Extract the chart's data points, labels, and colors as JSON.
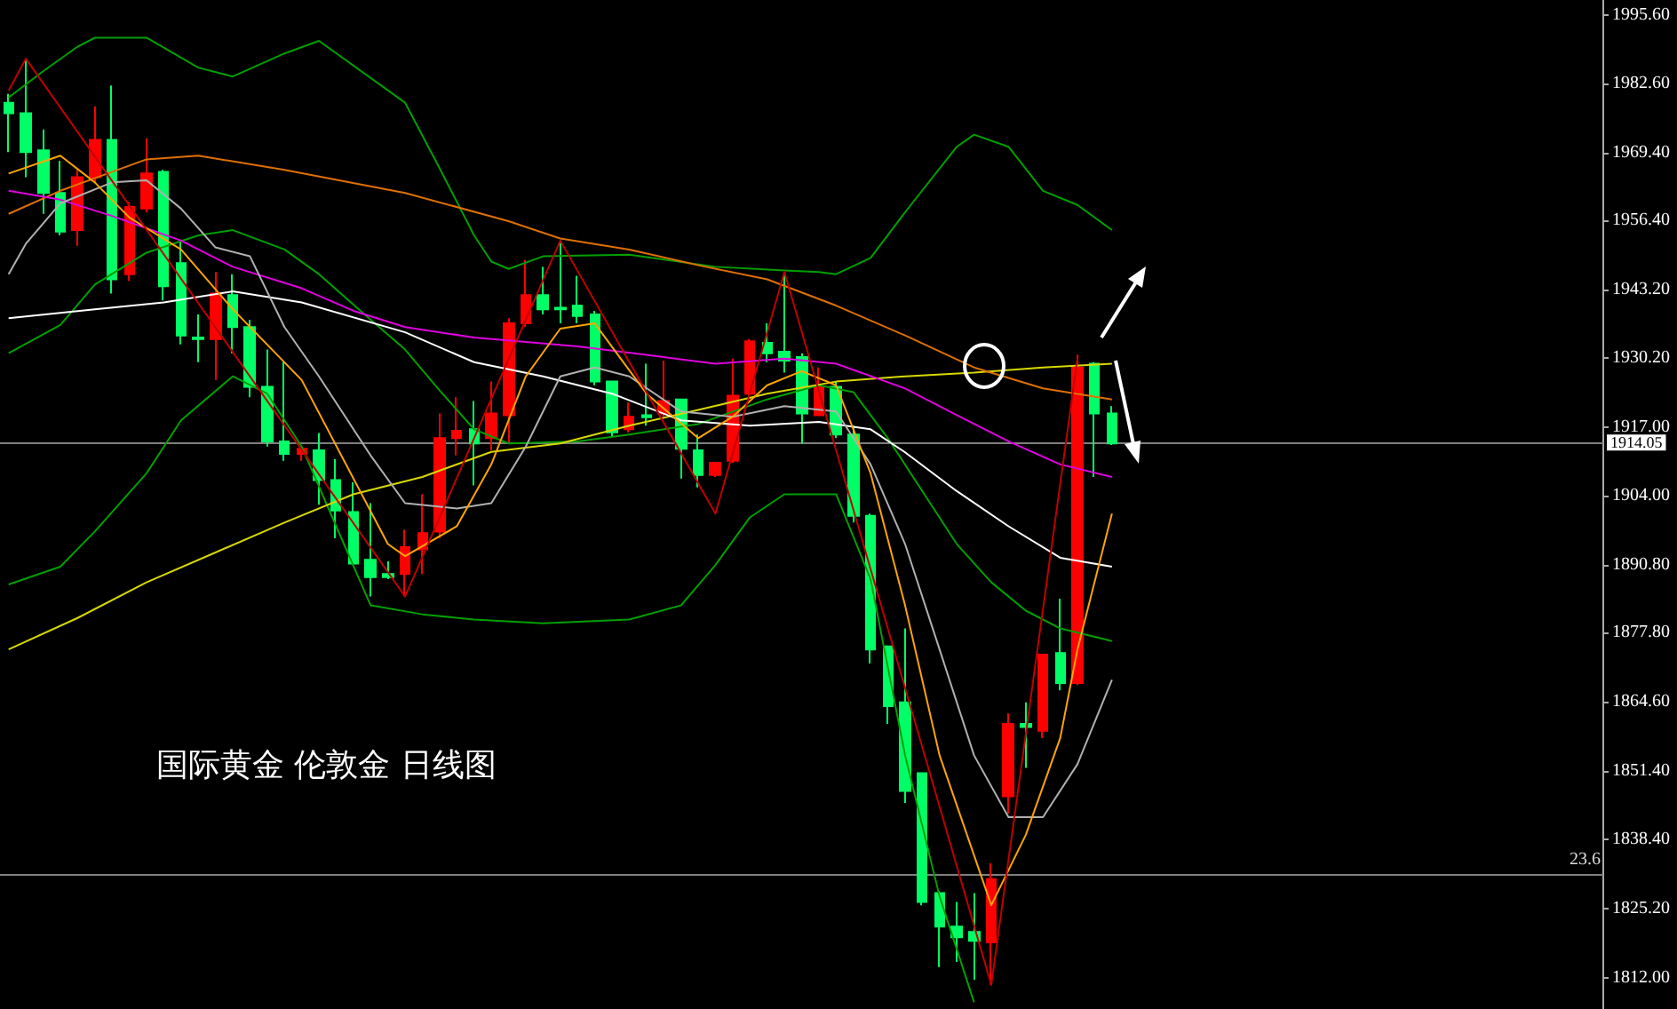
{
  "chart_data": {
    "type": "candlestick",
    "categories": [
      null,
      null,
      null,
      null,
      null,
      null,
      null,
      null,
      null,
      null,
      null,
      null,
      null,
      null,
      null,
      null,
      null,
      null,
      null,
      null,
      null,
      null,
      null,
      null,
      null,
      null,
      null,
      null,
      null,
      null,
      null,
      null,
      null,
      null,
      null,
      null,
      null,
      null,
      null,
      null,
      null,
      null,
      null,
      null,
      null,
      null,
      null,
      null,
      null,
      null,
      null,
      null,
      null,
      null,
      null,
      null,
      null,
      null,
      null,
      null,
      null,
      null,
      null,
      null,
      null,
      null,
      null,
      null,
      null,
      null,
      null,
      null,
      null,
      null,
      null,
      null,
      null,
      null,
      null,
      null,
      null,
      null,
      null,
      null,
      null,
      null,
      null,
      null,
      null,
      null,
      null,
      null,
      null
    ],
    "ohlc": [
      [
        1978.9,
        1980.6,
        1969.5,
        1976.9
      ],
      [
        1976.9,
        1987.3,
        1964.7,
        1969.5
      ],
      [
        1969.8,
        1973.8,
        1957.7,
        1961.7
      ],
      [
        1961.7,
        1967.8,
        1953.6,
        1954.3
      ],
      [
        1954.6,
        1966.1,
        1951.6,
        1964.7
      ],
      [
        1964.7,
        1978.2,
        1963.7,
        1971.8
      ],
      [
        1971.8,
        1982.2,
        1942.5,
        1945.2
      ],
      [
        1946.2,
        1960.0,
        1944.9,
        1959.0
      ],
      [
        1958.7,
        1972.1,
        1958.0,
        1965.4
      ],
      [
        1965.7,
        1966.1,
        1941.2,
        1943.9
      ],
      [
        1948.3,
        1952.6,
        1932.8,
        1934.5
      ],
      [
        1934.1,
        1938.5,
        1929.4,
        1933.8
      ],
      [
        1933.8,
        1946.6,
        1926.0,
        1942.5
      ],
      [
        1942.2,
        1946.2,
        1931.1,
        1936.1
      ],
      [
        1936.1,
        1937.5,
        1922.7,
        1924.7
      ],
      [
        1924.7,
        1931.8,
        1913.3,
        1914.3
      ],
      [
        1914.3,
        1929.4,
        1910.6,
        1911.9
      ],
      [
        1911.9,
        1912.9,
        1910.6,
        1912.9
      ],
      [
        1912.6,
        1915.9,
        1902.2,
        1906.9
      ],
      [
        1906.9,
        1910.9,
        1895.8,
        1901.1
      ],
      [
        1900.8,
        1906.5,
        1890.7,
        1891.0
      ],
      [
        1891.7,
        1902.5,
        1884.7,
        1888.4
      ],
      [
        1889.0,
        1891.4,
        1888.0,
        1888.4
      ],
      [
        1889.0,
        1897.4,
        1884.7,
        1894.1
      ],
      [
        1893.7,
        1904.2,
        1889.0,
        1896.8
      ],
      [
        1897.1,
        1919.6,
        1895.8,
        1914.9
      ],
      [
        1914.9,
        1922.7,
        1911.6,
        1916.3
      ],
      [
        1916.6,
        1922.0,
        1905.9,
        1913.9
      ],
      [
        1914.9,
        1925.7,
        1912.6,
        1919.6
      ],
      [
        1919.3,
        1937.8,
        1913.9,
        1936.8
      ],
      [
        1936.8,
        1948.9,
        1936.1,
        1942.2
      ],
      [
        1942.2,
        1947.6,
        1938.5,
        1939.5
      ],
      [
        1939.8,
        1952.6,
        1936.8,
        1939.5
      ],
      [
        1940.2,
        1945.9,
        1936.8,
        1938.2
      ],
      [
        1938.5,
        1939.2,
        1925.0,
        1925.7
      ],
      [
        1925.7,
        1925.7,
        1915.3,
        1916.0
      ],
      [
        1916.6,
        1921.7,
        1916.0,
        1919.0
      ],
      [
        1919.3,
        1929.1,
        1917.3,
        1918.9
      ],
      [
        1919.6,
        1929.7,
        1919.0,
        1922.0
      ],
      [
        1922.3,
        1922.3,
        1907.2,
        1912.9
      ],
      [
        1912.6,
        1915.6,
        1905.5,
        1907.9
      ],
      [
        1907.9,
        1910.2,
        1907.5,
        1910.2
      ],
      [
        1910.6,
        1930.1,
        1910.2,
        1923.0
      ],
      [
        1923.4,
        1933.8,
        1922.7,
        1933.4
      ],
      [
        1933.1,
        1936.8,
        1929.4,
        1931.1
      ],
      [
        1931.4,
        1946.2,
        1927.4,
        1929.7
      ],
      [
        1930.4,
        1931.1,
        1913.9,
        1919.6
      ],
      [
        1919.3,
        1928.4,
        1919.3,
        1924.7
      ],
      [
        1924.7,
        1925.7,
        1914.9,
        1915.6
      ],
      [
        1915.6,
        1917.3,
        1898.8,
        1900.1
      ],
      [
        1900.1,
        1900.5,
        1871.9,
        1874.6
      ],
      [
        1875.2,
        1875.2,
        1860.4,
        1863.8
      ],
      [
        1864.5,
        1878.6,
        1845.3,
        1847.6
      ],
      [
        1851.0,
        1851.0,
        1825.8,
        1826.4
      ],
      [
        1828.1,
        1828.5,
        1814.0,
        1821.7
      ],
      [
        1821.7,
        1826.4,
        1815.0,
        1819.7
      ],
      [
        1820.7,
        1828.1,
        1811.6,
        1819.0
      ],
      [
        1818.7,
        1833.8,
        1810.6,
        1830.8
      ],
      [
        1846.6,
        1862.4,
        1843.3,
        1860.4
      ],
      [
        1860.4,
        1864.5,
        1852.0,
        1859.8
      ],
      [
        1859.1,
        1873.6,
        1857.7,
        1873.6
      ],
      [
        1873.9,
        1884.3,
        1866.8,
        1868.2
      ],
      [
        1868.2,
        1930.8,
        1867.8,
        1928.4
      ],
      [
        1929.1,
        1929.4,
        1907.5,
        1919.6
      ],
      [
        1919.6,
        1921.0,
        1913.6,
        1913.9
      ],
      null,
      null,
      null,
      null,
      null,
      null,
      null,
      null,
      null,
      null,
      null,
      null,
      null,
      null,
      null,
      null,
      null,
      null,
      null,
      null,
      null,
      null,
      null,
      null,
      null,
      null,
      null,
      null
    ],
    "colors": [
      "#00ff66",
      "#00ff66",
      "#00ff66",
      "#00ff66",
      "#ff0000",
      "#ff0000",
      "#00ff66",
      "#ff0000",
      "#ff0000",
      "#00ff66",
      "#00ff66",
      "#00ff66",
      "#ff0000",
      "#00ff66",
      "#00ff66",
      "#00ff66",
      "#00ff66",
      "#ff0000",
      "#00ff66",
      "#00ff66",
      "#00ff66",
      "#00ff66",
      "#00ff66",
      "#ff0000",
      "#ff0000",
      "#ff0000",
      "#ff0000",
      "#00ff66",
      "#ff0000",
      "#ff0000",
      "#ff0000",
      "#00ff66",
      "#00ff66",
      "#00ff66",
      "#00ff66",
      "#00ff66",
      "#ff0000",
      "#00ff66",
      "#ff0000",
      "#00ff66",
      "#00ff66",
      "#ff0000",
      "#ff0000",
      "#ff0000",
      "#00ff66",
      "#00ff66",
      "#00ff66",
      "#ff0000",
      "#00ff66",
      "#00ff66",
      "#00ff66",
      "#00ff66",
      "#00ff66",
      "#00ff66",
      "#00ff66",
      "#00ff66",
      "#00ff66",
      "#ff0000",
      "#ff0000",
      "#00ff66",
      "#ff0000",
      "#00ff66",
      "#ff0000",
      "#00ff66",
      "#00ff66",
      null,
      null,
      null,
      null,
      null,
      null,
      null,
      null,
      null,
      null,
      null,
      null,
      null,
      null,
      null,
      null,
      null,
      null,
      null,
      null,
      null,
      null,
      null,
      null,
      null,
      null,
      null,
      null
    ],
    "series": [
      {
        "type": "line",
        "color": "#00a000",
        "values": [
          1979.9,
          null,
          1984.9,
          null,
          1989.6,
          1991.3,
          null,
          null,
          1991.3,
          null,
          null,
          1985.6,
          null,
          1983.9,
          null,
          null,
          1988.3,
          null,
          1990.7,
          null,
          null,
          null,
          null,
          1978.9,
          null,
          1966.4,
          null,
          1953.6,
          1948.6,
          1947.2,
          null,
          1949.6,
          null,
          null,
          null,
          null,
          1949.9,
          null,
          null,
          null,
          null,
          1947.6,
          null,
          null,
          null,
          1946.9,
          null,
          1946.6,
          1946.2,
          null,
          1949.3,
          null,
          1958.0,
          null,
          null,
          1970.5,
          1972.8,
          null,
          1970.5,
          null,
          1962.1,
          null,
          1959.4,
          null,
          1954.6,
          null,
          null,
          null,
          null,
          null,
          null,
          null,
          null,
          null,
          null,
          null,
          null,
          null,
          null,
          null,
          null,
          null,
          null,
          null,
          null,
          null,
          null,
          null,
          null,
          null,
          null,
          null,
          null
        ]
      },
      {
        "type": "line",
        "color": "#00a000",
        "values": [
          1931.1,
          null,
          null,
          1936.5,
          null,
          1944.2,
          null,
          null,
          1950.3,
          null,
          null,
          1953.6,
          null,
          1954.6,
          null,
          null,
          1950.9,
          null,
          1946.2,
          null,
          null,
          1937.5,
          null,
          1931.8,
          null,
          1924.0,
          null,
          1916.6,
          null,
          1913.9,
          null,
          null,
          null,
          1914.3,
          null,
          null,
          1915.6,
          null,
          null,
          null,
          1917.6,
          null,
          null,
          null,
          1922.3,
          null,
          null,
          1925.0,
          null,
          1923.7,
          null,
          1914.9,
          null,
          1904.8,
          null,
          1894.7,
          null,
          1887.4,
          null,
          1882.0,
          null,
          1878.6,
          null,
          null,
          1876.2,
          null,
          null,
          null,
          null,
          null,
          null,
          null,
          null,
          null,
          null,
          null,
          null,
          null,
          null,
          null,
          null,
          null,
          null,
          null,
          null,
          null,
          null,
          null,
          null,
          null,
          null,
          null,
          null
        ]
      },
      {
        "type": "line",
        "color": "#00a000",
        "values": [
          1887.0,
          null,
          null,
          1890.4,
          null,
          1897.1,
          null,
          null,
          1908.2,
          null,
          1918.3,
          null,
          null,
          1926.7,
          null,
          1923.4,
          null,
          1913.3,
          null,
          1898.1,
          null,
          1883.0,
          null,
          null,
          1881.3,
          null,
          null,
          1880.3,
          null,
          null,
          null,
          1879.6,
          null,
          null,
          null,
          null,
          1880.3,
          null,
          null,
          1883.0,
          null,
          1890.7,
          null,
          1899.8,
          null,
          1904.2,
          null,
          null,
          1904.2,
          null,
          1888.0,
          null,
          1854.4,
          null,
          1827.5,
          null,
          1807.3,
          null,
          null,
          null,
          null,
          null,
          null,
          null,
          null,
          null,
          null,
          null,
          null,
          null,
          null,
          null,
          null,
          null,
          null,
          null,
          null,
          null,
          null,
          null,
          null,
          null,
          null,
          null,
          null,
          null,
          null,
          null,
          null,
          null,
          null,
          null,
          null
        ]
      },
      {
        "type": "line",
        "color": "#d8d800",
        "values": [
          1874.6,
          null,
          null,
          null,
          1880.6,
          null,
          null,
          null,
          1887.4,
          null,
          null,
          null,
          1893.1,
          null,
          null,
          null,
          1898.8,
          null,
          null,
          null,
          1904.2,
          null,
          null,
          null,
          1907.5,
          null,
          null,
          null,
          1912.3,
          null,
          null,
          null,
          1913.9,
          null,
          null,
          null,
          1917.3,
          null,
          null,
          null,
          1920.3,
          null,
          null,
          null,
          1923.4,
          null,
          null,
          null,
          1925.7,
          null,
          null,
          null,
          1926.7,
          null,
          null,
          null,
          1927.4,
          null,
          null,
          null,
          1928.4,
          null,
          null,
          null,
          1929.1,
          null,
          null,
          null,
          null,
          null,
          null,
          null,
          null,
          null,
          null,
          null,
          null,
          null,
          null,
          null,
          null,
          null,
          null,
          null,
          null,
          null,
          null,
          null,
          null,
          null,
          null,
          null,
          null
        ]
      },
      {
        "type": "line",
        "color": "#e07000",
        "values": [
          1957.7,
          null,
          null,
          1962.1,
          null,
          null,
          null,
          null,
          1968.1,
          null,
          null,
          1968.8,
          null,
          null,
          null,
          null,
          1966.1,
          null,
          null,
          null,
          null,
          null,
          null,
          1961.7,
          null,
          null,
          null,
          null,
          null,
          1956.3,
          null,
          null,
          1953.0,
          null,
          null,
          null,
          1950.9,
          null,
          null,
          null,
          1947.9,
          null,
          null,
          null,
          1945.2,
          null,
          null,
          null,
          1940.2,
          null,
          null,
          null,
          1934.5,
          null,
          null,
          null,
          1928.4,
          null,
          null,
          null,
          1924.4,
          null,
          null,
          null,
          1922.3,
          null,
          null,
          null,
          null,
          null,
          null,
          null,
          null,
          null,
          null,
          null,
          null,
          null,
          null,
          null,
          null,
          null,
          null,
          null,
          null,
          null,
          null,
          null,
          null,
          null,
          null,
          null,
          null
        ]
      },
      {
        "type": "line",
        "color": "#e000e0",
        "values": [
          1962.1,
          null,
          null,
          1960.4,
          null,
          null,
          1957.3,
          null,
          null,
          null,
          1952.6,
          null,
          null,
          1947.6,
          null,
          null,
          null,
          1943.5,
          null,
          null,
          1939.2,
          null,
          null,
          1936.1,
          null,
          null,
          null,
          1934.1,
          null,
          null,
          null,
          null,
          null,
          1932.4,
          null,
          null,
          null,
          1930.8,
          null,
          null,
          null,
          1929.1,
          null,
          null,
          null,
          1930.1,
          null,
          null,
          1929.1,
          null,
          null,
          null,
          1924.4,
          null,
          null,
          1919.3,
          null,
          null,
          1914.3,
          null,
          null,
          1909.9,
          null,
          null,
          1907.5,
          null,
          null,
          null,
          null,
          null,
          null,
          null,
          null,
          null,
          null,
          null,
          null,
          null,
          null,
          null,
          null,
          null,
          null,
          null,
          null,
          null,
          null,
          null,
          null,
          null,
          null,
          null,
          null
        ]
      },
      {
        "type": "line",
        "color": "#ffffff",
        "values": [
          1937.8,
          null,
          null,
          null,
          null,
          1939.5,
          null,
          null,
          null,
          1940.8,
          null,
          null,
          null,
          1942.9,
          null,
          null,
          null,
          1940.8,
          null,
          null,
          null,
          null,
          null,
          1935.1,
          null,
          null,
          null,
          1929.4,
          null,
          null,
          null,
          1926.7,
          null,
          null,
          null,
          1923.4,
          null,
          null,
          null,
          1918.3,
          null,
          null,
          null,
          1917.3,
          null,
          null,
          null,
          1918.0,
          null,
          null,
          1916.6,
          null,
          1912.2,
          null,
          null,
          1904.8,
          null,
          null,
          1898.1,
          null,
          null,
          1892.1,
          null,
          null,
          1890.4,
          null,
          null,
          null,
          null,
          null,
          null,
          null,
          null,
          null,
          null,
          null,
          null,
          null,
          null,
          null,
          null,
          null,
          null,
          null,
          null,
          null,
          null,
          null,
          null,
          null,
          null,
          null,
          null
        ]
      },
      {
        "type": "line",
        "color": "#b0b0b0",
        "values": [
          1946.2,
          1952.0,
          null,
          1959.7,
          null,
          null,
          1963.7,
          null,
          1964.1,
          null,
          1958.7,
          null,
          1951.3,
          null,
          1949.6,
          null,
          1936.1,
          null,
          1926.7,
          null,
          null,
          1911.6,
          null,
          1902.5,
          null,
          null,
          1901.5,
          null,
          1902.5,
          null,
          1913.3,
          null,
          1926.7,
          null,
          1928.4,
          null,
          1926.7,
          null,
          null,
          1920.0,
          null,
          null,
          1919.0,
          null,
          null,
          1921.0,
          null,
          null,
          1920.0,
          null,
          1909.9,
          null,
          1894.7,
          null,
          1874.6,
          null,
          1854.4,
          null,
          1842.6,
          null,
          1842.6,
          null,
          1852.7,
          null,
          1868.8,
          null,
          null,
          null,
          null,
          null,
          null,
          null,
          null,
          null,
          null,
          null,
          null,
          null,
          null,
          null,
          null,
          null,
          null,
          null,
          null,
          null,
          null,
          null,
          null,
          null,
          null,
          null,
          null
        ]
      },
      {
        "type": "line",
        "color": "#ffa500",
        "values": [
          1965.4,
          null,
          null,
          1968.8,
          null,
          1963.7,
          null,
          1957.0,
          null,
          null,
          1950.9,
          null,
          null,
          1939.5,
          null,
          null,
          null,
          1926.0,
          null,
          null,
          null,
          null,
          1894.7,
          1892.4,
          null,
          null,
          1898.1,
          null,
          1909.9,
          null,
          1926.7,
          null,
          1935.8,
          null,
          1936.8,
          null,
          null,
          1923.4,
          null,
          null,
          1914.9,
          null,
          1919.0,
          null,
          1925.0,
          null,
          1927.7,
          null,
          1925.0,
          null,
          1908.2,
          null,
          1883.0,
          null,
          1854.4,
          null,
          null,
          1825.8,
          null,
          1839.2,
          null,
          1857.7,
          1874.6,
          null,
          1900.5,
          null,
          null,
          null,
          null,
          null,
          null,
          null,
          null,
          null,
          null,
          null,
          null,
          null,
          null,
          null,
          null,
          null,
          null,
          null,
          null,
          null,
          null,
          null,
          null,
          null,
          null,
          null,
          null
        ]
      },
      {
        "type": "line",
        "color": "#c00000",
        "values": [
          1981.2,
          1987.3,
          null,
          null,
          null,
          null,
          null,
          null,
          null,
          null,
          null,
          null,
          null,
          null,
          null,
          null,
          null,
          null,
          null,
          null,
          null,
          null,
          null,
          1884.7,
          null,
          null,
          null,
          null,
          null,
          null,
          null,
          null,
          1952.6,
          null,
          null,
          null,
          null,
          null,
          null,
          null,
          null,
          1900.5,
          null,
          null,
          null,
          1946.6,
          null,
          null,
          null,
          null,
          null,
          null,
          null,
          null,
          null,
          null,
          null,
          1810.6,
          null,
          null,
          null,
          null,
          1930.1,
          null,
          null,
          null,
          null,
          null,
          null,
          null,
          null,
          null,
          null,
          null,
          null,
          null,
          null,
          null,
          null,
          null,
          null,
          null,
          null,
          null,
          null,
          null,
          null,
          null,
          null,
          null,
          null,
          null,
          null
        ]
      }
    ],
    "ref_lines": [
      {
        "axis": "y",
        "value": 1914.05,
        "label": "1914.05",
        "color": "#808080"
      },
      {
        "axis": "y",
        "value": 1831.8,
        "color": "#808080"
      }
    ],
    "annotations": [
      "国际黄金 伦敦金 日线图",
      {
        "text": "23.6",
        "y": 1831.8
      }
    ],
    "ylim": [
      1806,
      1998.5
    ],
    "yticks": [
      {
        "value": 1995.6,
        "label": "1995.60"
      },
      {
        "value": 1982.6,
        "label": "1982.60"
      },
      {
        "value": 1969.4,
        "label": "1969.40"
      },
      {
        "value": 1956.4,
        "label": "1956.40"
      },
      {
        "value": 1943.2,
        "label": "1943.20"
      },
      {
        "value": 1930.2,
        "label": "1930.20"
      },
      {
        "value": 1917,
        "label": "1917.00"
      },
      {
        "value": 1904,
        "label": "1904.00"
      },
      {
        "value": 1890.8,
        "label": "1890.80"
      },
      {
        "value": 1877.8,
        "label": "1877.80"
      },
      {
        "value": 1864.6,
        "label": "1864.60"
      },
      {
        "value": 1851.4,
        "label": "1851.40"
      },
      {
        "value": 1838.4,
        "label": "1838.40"
      },
      {
        "value": 1825.2,
        "label": "1825.20"
      },
      {
        "value": 1812,
        "label": "1812.00"
      }
    ],
    "tick_labels": "y",
    "marker": "none",
    "line_style": "solid"
  }
}
